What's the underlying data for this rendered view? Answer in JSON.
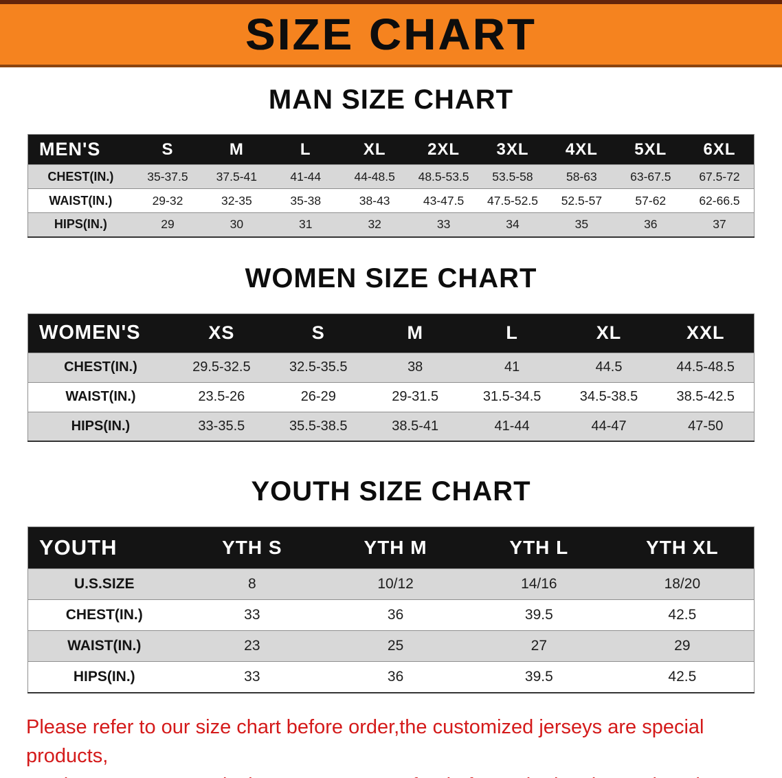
{
  "banner": {
    "title": "SIZE CHART",
    "bg_color": "#f5831f",
    "edge_color": "#64240a",
    "text_color": "#0d0d0d"
  },
  "colors": {
    "header_bg": "#141414",
    "header_text": "#ffffff",
    "row_alt": "#d8d8d8",
    "footer_text": "#d41a1a"
  },
  "sections": [
    {
      "heading": "MAN SIZE CHART",
      "table": {
        "corner": "MEN'S",
        "columns": [
          "S",
          "M",
          "L",
          "XL",
          "2XL",
          "3XL",
          "4XL",
          "5XL",
          "6XL"
        ],
        "rows": [
          {
            "label": "CHEST(IN.)",
            "values": [
              "35-37.5",
              "37.5-41",
              "41-44",
              "44-48.5",
              "48.5-53.5",
              "53.5-58",
              "58-63",
              "63-67.5",
              "67.5-72"
            ]
          },
          {
            "label": "WAIST(IN.)",
            "values": [
              "29-32",
              "32-35",
              "35-38",
              "38-43",
              "43-47.5",
              "47.5-52.5",
              "52.5-57",
              "57-62",
              "62-66.5"
            ]
          },
          {
            "label": "HIPS(IN.)",
            "values": [
              "29",
              "30",
              "31",
              "32",
              "33",
              "34",
              "35",
              "36",
              "37"
            ]
          }
        ]
      }
    },
    {
      "heading": "WOMEN SIZE CHART",
      "table": {
        "corner": "WOMEN'S",
        "columns": [
          "XS",
          "S",
          "M",
          "L",
          "XL",
          "XXL"
        ],
        "rows": [
          {
            "label": "CHEST(IN.)",
            "values": [
              "29.5-32.5",
              "32.5-35.5",
              "38",
              "41",
              "44.5",
              "44.5-48.5"
            ]
          },
          {
            "label": "WAIST(IN.)",
            "values": [
              "23.5-26",
              "26-29",
              "29-31.5",
              "31.5-34.5",
              "34.5-38.5",
              "38.5-42.5"
            ]
          },
          {
            "label": "HIPS(IN.)",
            "values": [
              "33-35.5",
              "35.5-38.5",
              "38.5-41",
              "41-44",
              "44-47",
              "47-50"
            ]
          }
        ]
      }
    },
    {
      "heading": "YOUTH SIZE CHART",
      "table": {
        "corner": "YOUTH",
        "columns": [
          "YTH S",
          "YTH M",
          "YTH L",
          "YTH XL"
        ],
        "rows": [
          {
            "label": "U.S.SIZE",
            "values": [
              "8",
              "10/12",
              "14/16",
              "18/20"
            ]
          },
          {
            "label": "CHEST(IN.)",
            "values": [
              "33",
              "36",
              "39.5",
              "42.5"
            ]
          },
          {
            "label": "WAIST(IN.)",
            "values": [
              "23",
              "25",
              "27",
              "29"
            ]
          },
          {
            "label": "HIPS(IN.)",
            "values": [
              "33",
              "36",
              "39.5",
              "42.5"
            ]
          }
        ]
      }
    }
  ],
  "footer": {
    "line1": "Please refer to our size chart before order,the customized jerseys are special products,",
    "line2": "we don't accept cancel, change, teturn or refund after order has been placed!"
  }
}
